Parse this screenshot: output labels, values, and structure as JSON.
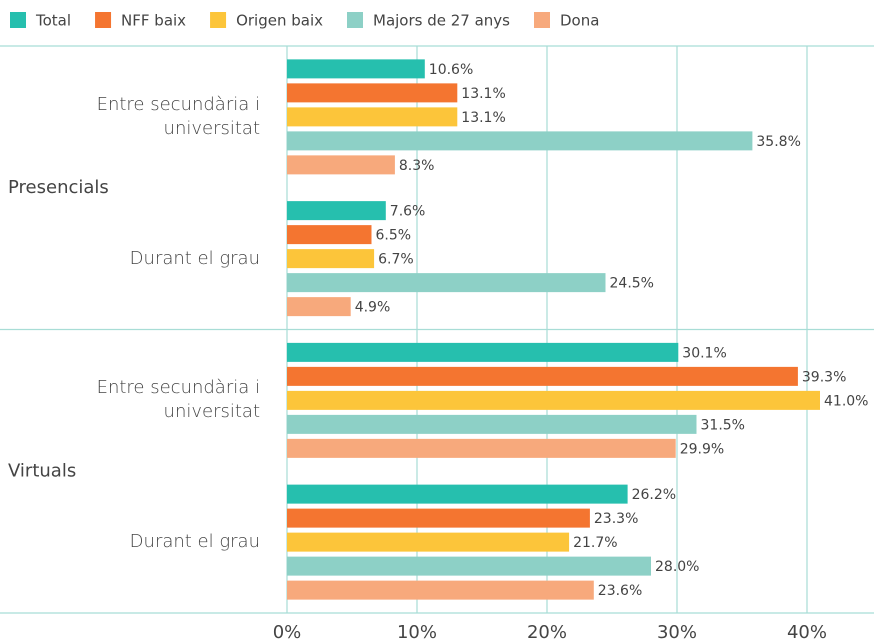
{
  "chart_data": {
    "type": "bar",
    "orientation": "horizontal",
    "groups": [
      "Presencials",
      "Virtuals"
    ],
    "categories": [
      "Entre secundària i universitat",
      "Durant el grau",
      "Entre secundària i universitat",
      "Durant el grau"
    ],
    "series": [
      {
        "name": "Total",
        "color": "#26bfae",
        "values": [
          10.6,
          7.6,
          30.1,
          26.2
        ],
        "value_labels": [
          "10.6%",
          "7.6%",
          "30.1%",
          "26.2%"
        ]
      },
      {
        "name": "NFF baix",
        "color": "#f47530",
        "values": [
          13.1,
          6.5,
          39.3,
          23.3
        ],
        "value_labels": [
          "13.1%",
          "6.5%",
          "39.3%",
          "23.3%"
        ]
      },
      {
        "name": "Origen baix",
        "color": "#fcc53a",
        "values": [
          13.1,
          6.7,
          41.0,
          21.7
        ],
        "value_labels": [
          "13.1%",
          "6.7%",
          "41.0%",
          "21.7%"
        ]
      },
      {
        "name": "Majors de 27 anys",
        "color": "#8dd0c6",
        "values": [
          35.8,
          24.5,
          31.5,
          28.0
        ],
        "value_labels": [
          "35.8%",
          "24.5%",
          "31.5%",
          "28.0%"
        ]
      },
      {
        "name": "Dona",
        "color": "#f7a97c",
        "values": [
          8.3,
          4.9,
          29.9,
          23.6
        ],
        "value_labels": [
          "8.3%",
          "4.9%",
          "29.9%",
          "23.6%"
        ]
      }
    ],
    "xlim": [
      0,
      45
    ],
    "xticks": [
      {
        "value": 0,
        "label": "0%"
      },
      {
        "value": 10,
        "label": "10%"
      },
      {
        "value": 20,
        "label": "20%"
      },
      {
        "value": 30,
        "label": "30%"
      },
      {
        "value": 40,
        "label": "40%"
      }
    ],
    "grid": true,
    "legend": "top"
  }
}
